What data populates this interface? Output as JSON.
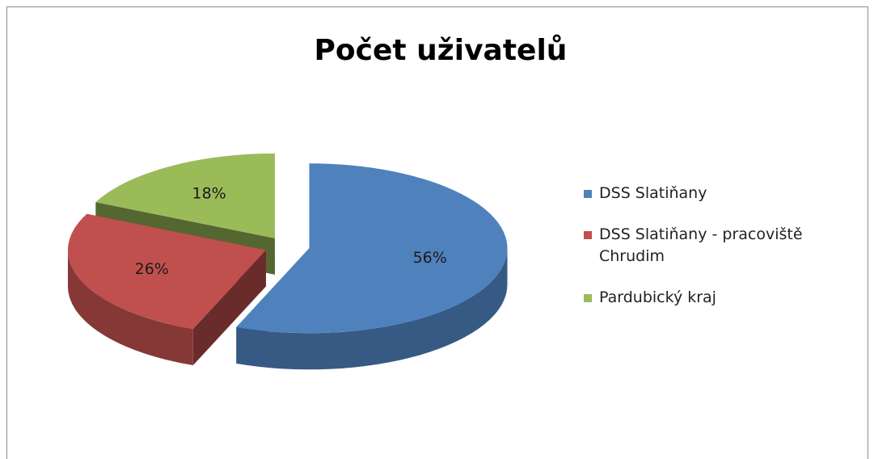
{
  "chart_data": {
    "type": "pie",
    "title": "Počet uživatelů",
    "categories": [
      "DSS Slatiňany",
      "DSS Slatiňany - pracoviště Chrudim",
      "Pardubický kraj"
    ],
    "values": [
      56,
      26,
      18
    ],
    "value_labels": [
      "56%",
      "26%",
      "18%"
    ],
    "colors": [
      "#4f81bd",
      "#c0504d",
      "#9bbb59"
    ],
    "legend": "right"
  }
}
